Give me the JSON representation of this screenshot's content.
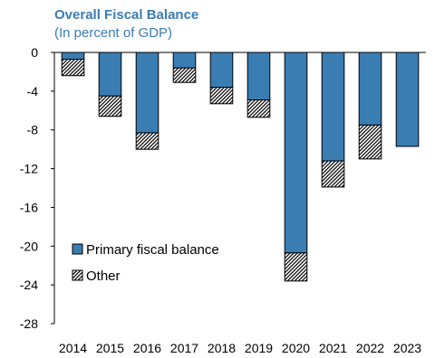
{
  "chart_data": {
    "type": "bar",
    "stacked": true,
    "title": "Overall Fiscal Balance",
    "subtitle": "(In percent of GDP)",
    "categories": [
      "2014",
      "2015",
      "2016",
      "2017",
      "2018",
      "2019",
      "2020",
      "2021",
      "2022",
      "2023"
    ],
    "series": [
      {
        "name": "Primary fiscal balance",
        "values": [
          -0.7,
          -4.5,
          -8.3,
          -1.6,
          -3.6,
          -4.9,
          -20.7,
          -11.2,
          -7.5,
          -9.7
        ],
        "color": "#3a7db3",
        "pattern": "solid"
      },
      {
        "name": "Other",
        "values": [
          -1.7,
          -2.1,
          -1.7,
          -1.5,
          -1.7,
          -1.8,
          -2.9,
          -2.7,
          -3.5,
          0
        ],
        "color": "#000000",
        "pattern": "diagonal-hatch"
      }
    ],
    "ylim": [
      -28,
      0
    ],
    "yticks": [
      0,
      -4,
      -8,
      -12,
      -16,
      -20,
      -24,
      -28
    ],
    "xlabel": "",
    "ylabel": "",
    "grid": false,
    "legend_position": "bottom-left"
  }
}
